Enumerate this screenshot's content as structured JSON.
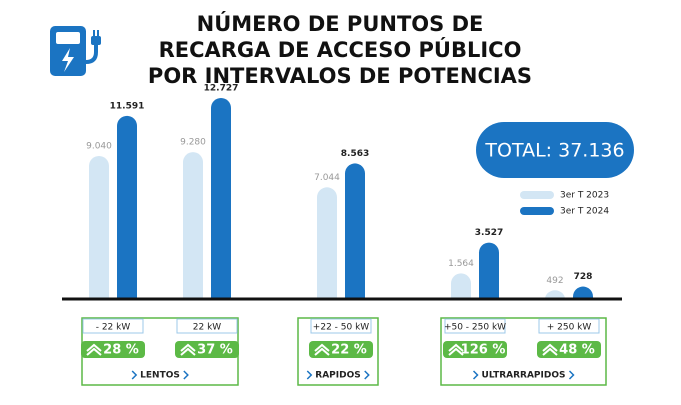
{
  "chart_data": {
    "type": "bar",
    "title": [
      "NÚMERO DE PUNTOS DE",
      "RECARGA DE ACCESO PÚBLICO",
      "POR INTERVALOS DE POTENCIAS"
    ],
    "categories": [
      "- 22 kW",
      "22 kW",
      "+22 - 50 kW",
      "+50 - 250 kW",
      "+ 250 kW"
    ],
    "series": [
      {
        "name": "3er T 2023",
        "color": "#d3e6f4",
        "values": [
          9040,
          9280,
          7044,
          1564,
          492
        ],
        "value_labels": [
          "9.040",
          "9.280",
          "7.044",
          "1.564",
          "492"
        ]
      },
      {
        "name": "3er T 2024",
        "color": "#1b74c2",
        "values": [
          11591,
          12727,
          8563,
          3527,
          728
        ],
        "value_labels": [
          "11.591",
          "12.727",
          "8.563",
          "3.527",
          "728"
        ]
      }
    ],
    "growth": {
      "color": "#5cb946",
      "values": [
        28,
        37,
        22,
        126,
        48
      ],
      "value_labels": [
        "28 %",
        "37 %",
        "22 %",
        "126 %",
        "48 %"
      ]
    },
    "groups": [
      "LENTOS",
      "RAPIDOS",
      "ULTRARRAPIDOS"
    ],
    "total": "TOTAL: 37.136"
  }
}
